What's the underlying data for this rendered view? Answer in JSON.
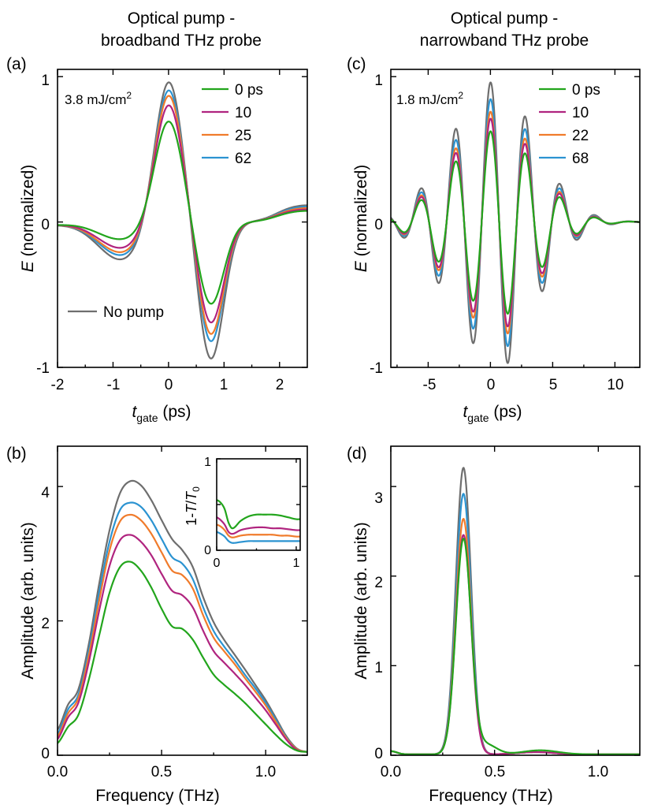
{
  "colors": {
    "green": "#22A51C",
    "magenta": "#B0247F",
    "orange": "#F07B2B",
    "blue": "#2B93D1",
    "gray": "#6E6E6E"
  },
  "headers": {
    "left_line1": "Optical pump -",
    "left_line2": "broadband THz probe",
    "right_line1": "Optical pump -",
    "right_line2": "narrowband THz probe"
  },
  "chart_data": [
    {
      "panel": "(a)",
      "type": "line",
      "xlabel": "t_gate (ps)",
      "ylabel": "E (normalized)",
      "xlim": [
        -2,
        2.5
      ],
      "ylim": [
        -1,
        1.05
      ],
      "xticks": [
        -2,
        -1,
        0,
        1,
        2
      ],
      "yticks": [
        -1,
        0,
        1
      ],
      "annotation": "3.8 mJ/cm^2",
      "legend_title_pos": "top-right",
      "series": [
        {
          "name": "0 ps",
          "color": "green",
          "peak": 0.71,
          "trough": -0.57,
          "pre": -0.12,
          "post": 0.08
        },
        {
          "name": "10",
          "color": "magenta",
          "peak": 0.83,
          "trough": -0.7,
          "pre": -0.18,
          "post": 0.09
        },
        {
          "name": "25",
          "color": "orange",
          "peak": 0.9,
          "trough": -0.78,
          "pre": -0.21,
          "post": 0.1
        },
        {
          "name": "62",
          "color": "blue",
          "peak": 0.94,
          "trough": -0.83,
          "pre": -0.23,
          "post": 0.11
        },
        {
          "name": "No pump",
          "color": "gray",
          "peak": 1.0,
          "trough": -0.95,
          "pre": -0.26,
          "post": 0.12
        }
      ]
    },
    {
      "panel": "(b)",
      "type": "line",
      "xlabel": "Frequency (THz)",
      "ylabel": "Amplitude (arb. units)",
      "xlim": [
        0,
        1.2
      ],
      "ylim": [
        0,
        4.6
      ],
      "xticks": [
        0.0,
        0.5,
        1.0
      ],
      "yticks": [
        0,
        2,
        4
      ],
      "x": [
        0.0,
        0.05,
        0.1,
        0.15,
        0.2,
        0.25,
        0.3,
        0.35,
        0.4,
        0.45,
        0.5,
        0.55,
        0.6,
        0.65,
        0.7,
        0.75,
        0.8,
        0.85,
        0.9,
        0.95,
        1.0,
        1.05,
        1.1,
        1.15,
        1.2
      ],
      "series": [
        {
          "color": "gray",
          "values": [
            0.38,
            0.75,
            0.98,
            1.65,
            2.55,
            3.35,
            3.9,
            4.08,
            4.02,
            3.8,
            3.5,
            3.22,
            3.05,
            2.8,
            2.35,
            1.98,
            1.72,
            1.5,
            1.28,
            1.05,
            0.82,
            0.55,
            0.28,
            0.1,
            0.05
          ]
        },
        {
          "color": "blue",
          "values": [
            0.32,
            0.68,
            0.9,
            1.55,
            2.42,
            3.18,
            3.65,
            3.76,
            3.7,
            3.5,
            3.22,
            2.95,
            2.85,
            2.62,
            2.2,
            1.85,
            1.62,
            1.42,
            1.2,
            1.0,
            0.78,
            0.52,
            0.26,
            0.09,
            0.05
          ]
        },
        {
          "color": "orange",
          "values": [
            0.28,
            0.62,
            0.85,
            1.48,
            2.3,
            3.05,
            3.48,
            3.58,
            3.5,
            3.3,
            3.02,
            2.75,
            2.68,
            2.48,
            2.08,
            1.75,
            1.55,
            1.36,
            1.15,
            0.95,
            0.74,
            0.49,
            0.25,
            0.09,
            0.05
          ]
        },
        {
          "color": "magenta",
          "values": [
            0.24,
            0.56,
            0.78,
            1.38,
            2.15,
            2.82,
            3.2,
            3.28,
            3.18,
            2.98,
            2.7,
            2.45,
            2.38,
            2.2,
            1.85,
            1.55,
            1.38,
            1.22,
            1.05,
            0.86,
            0.67,
            0.45,
            0.23,
            0.08,
            0.05
          ]
        },
        {
          "color": "green",
          "values": [
            0.18,
            0.42,
            0.6,
            1.12,
            1.78,
            2.42,
            2.8,
            2.88,
            2.75,
            2.5,
            2.18,
            1.92,
            1.88,
            1.72,
            1.45,
            1.2,
            1.05,
            0.92,
            0.78,
            0.62,
            0.46,
            0.3,
            0.16,
            0.07,
            0.05
          ]
        }
      ],
      "inset": {
        "ylabel": "1-T/T0",
        "xlim": [
          0,
          1.05
        ],
        "ylim": [
          0,
          1
        ],
        "xticks": [
          0,
          1
        ],
        "yticks": [
          0,
          0.5,
          1
        ],
        "x": [
          0.0,
          0.05,
          0.1,
          0.15,
          0.2,
          0.3,
          0.4,
          0.5,
          0.6,
          0.7,
          0.8,
          0.9,
          1.0,
          1.05
        ],
        "series": [
          {
            "color": "green",
            "values": [
              0.55,
              0.52,
              0.45,
              0.3,
              0.24,
              0.32,
              0.37,
              0.39,
              0.39,
              0.39,
              0.38,
              0.36,
              0.34,
              0.34
            ]
          },
          {
            "color": "magenta",
            "values": [
              0.36,
              0.33,
              0.28,
              0.2,
              0.18,
              0.22,
              0.24,
              0.25,
              0.25,
              0.24,
              0.24,
              0.23,
              0.22,
              0.22
            ]
          },
          {
            "color": "orange",
            "values": [
              0.28,
              0.26,
              0.22,
              0.16,
              0.14,
              0.16,
              0.17,
              0.17,
              0.17,
              0.17,
              0.16,
              0.16,
              0.15,
              0.15
            ]
          },
          {
            "color": "blue",
            "values": [
              0.2,
              0.18,
              0.15,
              0.1,
              0.08,
              0.09,
              0.1,
              0.1,
              0.1,
              0.1,
              0.1,
              0.1,
              0.1,
              0.1
            ]
          }
        ]
      }
    },
    {
      "panel": "(c)",
      "type": "line",
      "xlabel": "t_gate (ps)",
      "ylabel": "E (normalized)",
      "xlim": [
        -8,
        12
      ],
      "ylim": [
        -1,
        1.05
      ],
      "xticks": [
        -5,
        0,
        5,
        10
      ],
      "yticks": [
        -1,
        0,
        1
      ],
      "annotation": "1.8 mJ/cm^2",
      "series": [
        {
          "name": "0 ps",
          "color": "green",
          "scale": 0.65
        },
        {
          "name": "10",
          "color": "magenta",
          "scale": 0.74
        },
        {
          "name": "22",
          "color": "orange",
          "scale": 0.79
        },
        {
          "name": "68",
          "color": "blue",
          "scale": 0.88
        },
        {
          "color": "gray",
          "scale": 1.0
        }
      ]
    },
    {
      "panel": "(d)",
      "type": "line",
      "xlabel": "Frequency (THz)",
      "ylabel": "Amplitude (arb. units)",
      "xlim": [
        0,
        1.2
      ],
      "ylim": [
        0,
        3.45
      ],
      "xticks": [
        0.0,
        0.5,
        1.0
      ],
      "yticks": [
        0,
        1,
        2,
        3
      ],
      "center": 0.35,
      "series": [
        {
          "color": "green",
          "peak": 2.4
        },
        {
          "color": "magenta",
          "peak": 2.45
        },
        {
          "color": "orange",
          "peak": 2.63
        },
        {
          "color": "blue",
          "peak": 2.91
        },
        {
          "color": "gray",
          "peak": 3.2
        }
      ]
    }
  ],
  "labels": {
    "panel_a": "(a)",
    "panel_b": "(b)",
    "panel_c": "(c)",
    "panel_d": "(d)",
    "fluence_a_prefix": "3.8 mJ/cm",
    "fluence_a_sup": "2",
    "fluence_c_prefix": "1.8 mJ/cm",
    "fluence_c_sup": "2",
    "legend_a": [
      "0 ps",
      "10",
      "25",
      "62"
    ],
    "legend_c": [
      "0 ps",
      "10",
      "22",
      "68"
    ],
    "no_pump": "No pump",
    "xlabel_t_main": "t",
    "xlabel_t_sub": "gate",
    "xlabel_t_unit": " (ps)",
    "ylabel_E_main": "E",
    "ylabel_E_rest": " (normalized)",
    "xlabel_freq": "Frequency (THz)",
    "ylabel_amp": "Amplitude (arb. units)",
    "inset_ylabel_prefix": "1-",
    "inset_ylabel_T": "T",
    "inset_ylabel_slash": "/",
    "inset_ylabel_T0": "T",
    "inset_ylabel_sub0": "0",
    "ticks_a_x": [
      "-2",
      "-1",
      "0",
      "1",
      "2"
    ],
    "ticks_a_y": [
      "-1",
      "0",
      "1"
    ],
    "ticks_b_x": [
      "0.0",
      "0.5",
      "1.0"
    ],
    "ticks_b_y": [
      "0",
      "2",
      "4"
    ],
    "ticks_c_x": [
      "-5",
      "0",
      "5",
      "10"
    ],
    "ticks_c_y": [
      "-1",
      "0",
      "1"
    ],
    "ticks_d_x": [
      "0.0",
      "0.5",
      "1.0"
    ],
    "ticks_d_y": [
      "0",
      "1",
      "2",
      "3"
    ],
    "ticks_inset_x": [
      "0",
      "1"
    ],
    "ticks_inset_y": [
      "0",
      "1"
    ]
  }
}
